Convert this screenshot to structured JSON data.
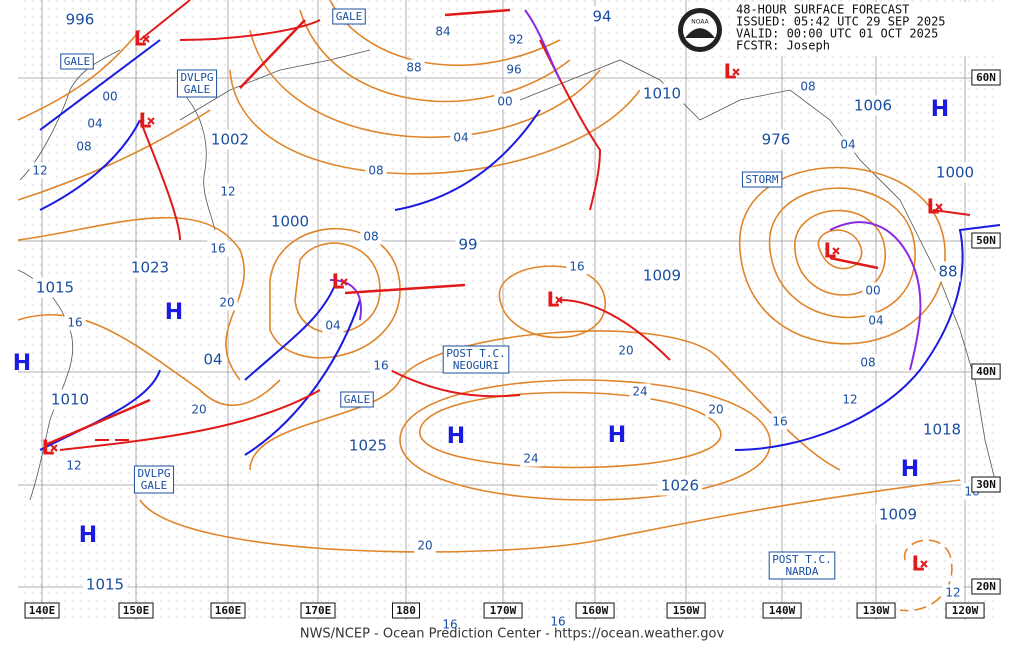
{
  "header": {
    "lines": [
      "48-HOUR SURFACE FORECAST",
      "ISSUED: 05:42 UTC 29 SEP 2025",
      "VALID:  00:00 UTC 01 OCT 2025",
      "FCSTR:  Joseph"
    ],
    "logo": "NOAA"
  },
  "footer": "NWS/NCEP - Ocean Prediction Center - https://ocean.weather.gov",
  "pressure_labels": [
    "996",
    "1002",
    "1000",
    "1023",
    "1015",
    "04",
    "1010",
    "1025",
    "99",
    "1009",
    "1026",
    "1010",
    "94",
    "976",
    "1006",
    "1000",
    "88",
    "1018",
    "1009",
    "1015"
  ],
  "warnings": [
    [
      "GALE"
    ],
    [
      "DVLPG",
      "GALE"
    ],
    [
      "GALE"
    ],
    [
      "STORM"
    ],
    [
      "GALE"
    ],
    [
      "POST T.C.",
      "NEOGURI"
    ],
    [
      "DVLPG",
      "GALE"
    ],
    [
      "POST T.C.",
      "NARDA"
    ]
  ],
  "isobar_labels": [
    "84",
    "88",
    "92",
    "96",
    "00",
    "04",
    "08",
    "12",
    "16",
    "20",
    "04",
    "08",
    "16",
    "00",
    "04",
    "08",
    "12",
    "16",
    "20",
    "12",
    "24",
    "24",
    "20",
    "16",
    "20",
    "16",
    "12",
    "08",
    "04",
    "00",
    "04",
    "08",
    "20",
    "16",
    "16",
    "16",
    "12"
  ],
  "highs": [
    "H",
    "H",
    "H",
    "H",
    "H",
    "H",
    "H"
  ],
  "lows": [
    "L",
    "L",
    "L",
    "L",
    "L",
    "L",
    "L",
    "L",
    "L"
  ],
  "longitudes": [
    "140E",
    "150E",
    "160E",
    "170E",
    "180",
    "170W",
    "160W",
    "150W",
    "140W",
    "130W",
    "120W"
  ],
  "latitudes": [
    "60N",
    "50N",
    "40N",
    "30N",
    "20N"
  ]
}
